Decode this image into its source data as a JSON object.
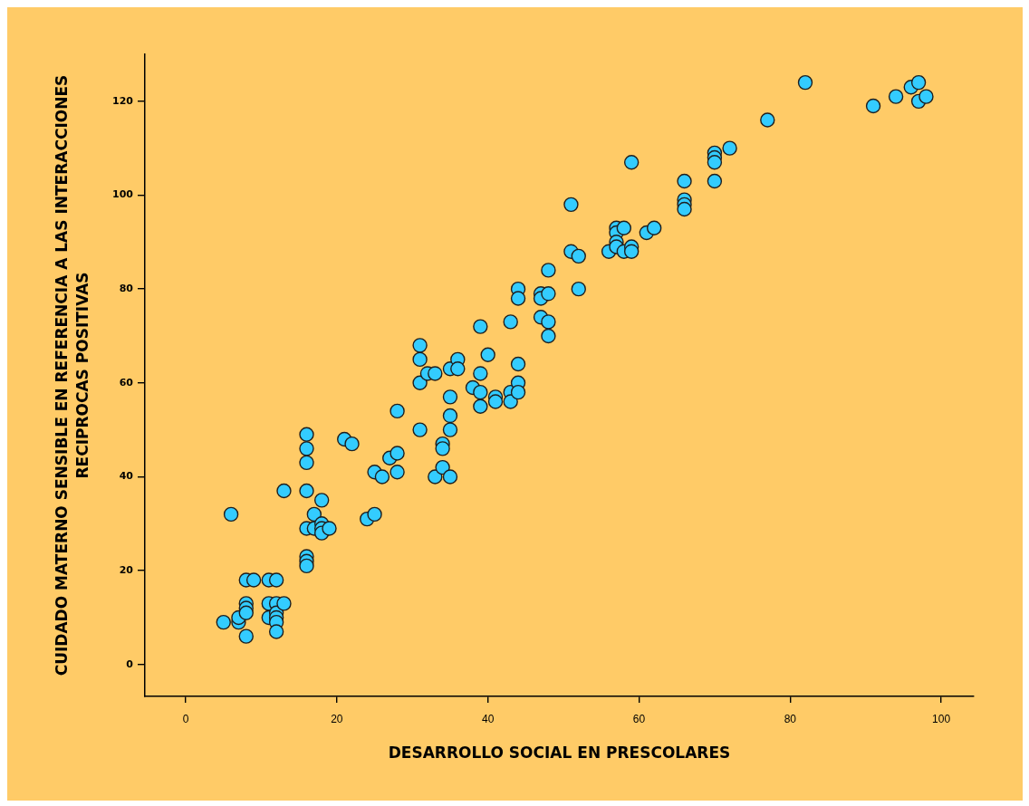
{
  "chart_data": {
    "type": "scatter",
    "xlabel": "DESARROLLO SOCIAL EN PRESCOLARES",
    "ylabel": "CUIDADO MATERNO SENSIBLE EN REFERENCIA A LAS INTERACCIONES\nRECIPROCAS POSITIVAS",
    "x": [
      5,
      6,
      7,
      7,
      8,
      8,
      8,
      8,
      8,
      9,
      11,
      12,
      11,
      11,
      12,
      12,
      12,
      12,
      12,
      13,
      13,
      16,
      16,
      16,
      16,
      16,
      16,
      16,
      16,
      17,
      17,
      18,
      18,
      18,
      18,
      19,
      21,
      22,
      24,
      25,
      25,
      26,
      27,
      28,
      28,
      28,
      31,
      31,
      31,
      31,
      32,
      33,
      33,
      34,
      34,
      34,
      35,
      35,
      35,
      35,
      35,
      36,
      36,
      38,
      39,
      39,
      39,
      39,
      40,
      41,
      41,
      43,
      43,
      43,
      44,
      44,
      44,
      44,
      44,
      47,
      47,
      47,
      48,
      48,
      48,
      48,
      51,
      51,
      52,
      52,
      56,
      57,
      57,
      57,
      57,
      58,
      58,
      59,
      59,
      59,
      61,
      62,
      66,
      66,
      66,
      66,
      70,
      70,
      70,
      70,
      72,
      77,
      82,
      91,
      94,
      96,
      97,
      97,
      98
    ],
    "values": [
      9,
      32,
      9,
      10,
      18,
      13,
      12,
      11,
      6,
      18,
      18,
      18,
      13,
      10,
      13,
      11,
      10,
      9,
      7,
      13,
      37,
      49,
      46,
      43,
      37,
      29,
      23,
      22,
      21,
      32,
      29,
      35,
      30,
      29,
      28,
      29,
      48,
      47,
      31,
      32,
      41,
      40,
      44,
      45,
      41,
      54,
      68,
      65,
      60,
      50,
      62,
      62,
      40,
      47,
      46,
      42,
      63,
      57,
      53,
      50,
      40,
      65,
      63,
      59,
      72,
      62,
      58,
      55,
      66,
      57,
      56,
      73,
      58,
      56,
      80,
      78,
      64,
      60,
      58,
      79,
      78,
      74,
      84,
      79,
      73,
      70,
      98,
      88,
      87,
      80,
      88,
      93,
      92,
      90,
      89,
      93,
      88,
      107,
      89,
      88,
      92,
      93,
      103,
      99,
      98,
      97,
      109,
      108,
      107,
      103,
      110,
      116,
      124,
      119,
      121,
      123,
      124,
      120,
      121
    ],
    "color": "#33ccff",
    "marker": "circle",
    "xlim": [
      -5.4,
      104.3
    ],
    "ylim": [
      -6.8,
      130
    ],
    "xticks": [
      0,
      20,
      40,
      60,
      80,
      100
    ],
    "yticks": [
      0,
      20,
      40,
      60,
      80,
      100,
      120
    ]
  }
}
